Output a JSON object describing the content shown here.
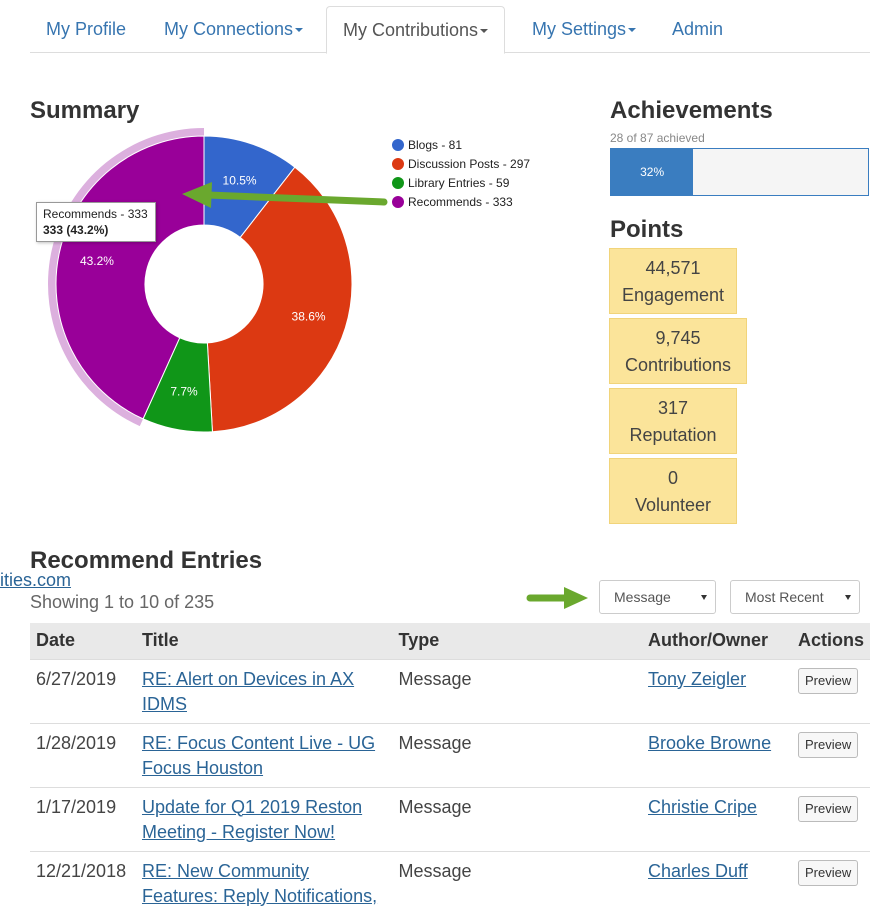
{
  "nav": {
    "tabs": [
      {
        "label": "My Profile",
        "dropdown": false
      },
      {
        "label": "My Connections",
        "dropdown": true
      },
      {
        "label": "My Contributions",
        "dropdown": true,
        "active": true
      },
      {
        "label": "My Settings",
        "dropdown": true
      },
      {
        "label": "Admin",
        "dropdown": false
      }
    ]
  },
  "summary": {
    "title": "Summary",
    "tooltip": {
      "line1": "Recommends - 333",
      "line2": "333 (43.2%)"
    }
  },
  "chart_data": {
    "type": "pie",
    "donut": true,
    "categories": [
      "Blogs",
      "Discussion Posts",
      "Library Entries",
      "Recommends"
    ],
    "values": [
      81,
      297,
      59,
      333
    ],
    "percent_labels": [
      "10.5%",
      "38.6%",
      "7.7%",
      "43.2%"
    ],
    "colors": [
      "#3366cc",
      "#dc3912",
      "#109618",
      "#990099"
    ],
    "legend": [
      "Blogs - 81",
      "Discussion Posts - 297",
      "Library Entries - 59",
      "Recommends - 333"
    ],
    "legend_position": "right",
    "highlighted": "Recommends"
  },
  "achievements": {
    "title": "Achievements",
    "subtitle": "28 of 87 achieved",
    "progress_fraction": 0.32,
    "progress_label": "32%"
  },
  "points": {
    "title": "Points",
    "items": [
      {
        "value": "44,571",
        "label": "Engagement"
      },
      {
        "value": "9,745",
        "label": "Contributions"
      },
      {
        "value": "317",
        "label": "Reputation"
      },
      {
        "value": "0",
        "label": "Volunteer"
      }
    ]
  },
  "entries": {
    "title": "Recommend Entries",
    "cut_off_link": "ities.com",
    "showing": "Showing 1 to 10 of 235",
    "filter_type": "Message",
    "filter_sort": "Most Recent",
    "columns": [
      "Date",
      "Title",
      "Type",
      "Author/Owner",
      "Actions"
    ],
    "rows": [
      {
        "date": "6/27/2019",
        "title": "RE: Alert on Devices in AX IDMS",
        "type": "Message",
        "author": "Tony Zeigler",
        "action": "Preview"
      },
      {
        "date": "1/28/2019",
        "title": "RE: Focus Content Live - UG Focus Houston",
        "type": "Message",
        "author": "Brooke Browne",
        "action": "Preview"
      },
      {
        "date": "1/17/2019",
        "title": "Update for Q1 2019 Reston Meeting - Register Now!",
        "type": "Message",
        "author": "Christie Cripe",
        "action": "Preview"
      },
      {
        "date": "12/21/2018",
        "title": "RE: New Community Features: Reply Notifications,",
        "type": "Message",
        "author": "Charles Duff",
        "action": "Preview"
      }
    ]
  }
}
